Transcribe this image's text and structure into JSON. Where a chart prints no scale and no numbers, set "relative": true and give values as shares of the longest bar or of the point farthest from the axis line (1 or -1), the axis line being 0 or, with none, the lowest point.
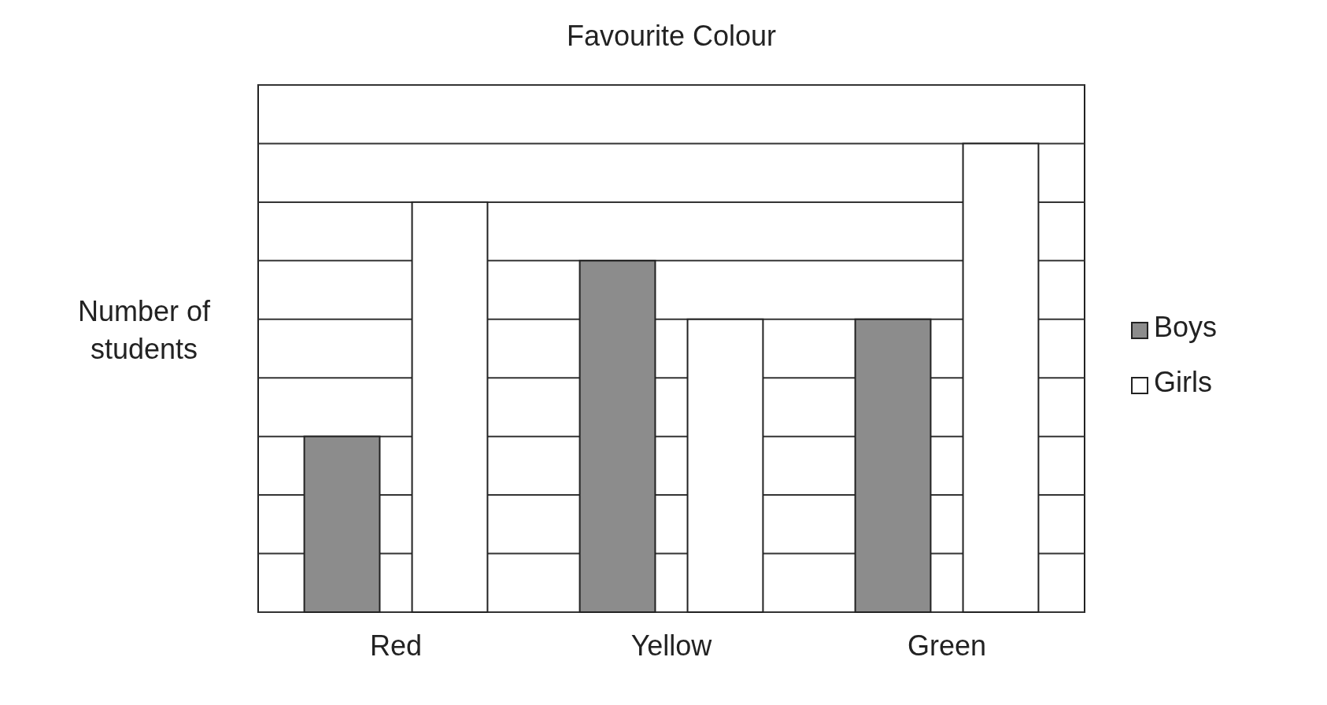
{
  "chart_data": {
    "type": "bar",
    "title": "Favourite Colour",
    "ylabel": "Number of students",
    "categories": [
      "Red",
      "Yellow",
      "Green"
    ],
    "relative": true,
    "grid": true,
    "legend": "right",
    "series": [
      {
        "name": "Boys",
        "color": "#8c8c8c",
        "values": [
          0.375,
          0.75,
          0.625
        ]
      },
      {
        "name": "Girls",
        "color": "#ffffff",
        "values": [
          0.875,
          0.625,
          1
        ]
      }
    ]
  }
}
